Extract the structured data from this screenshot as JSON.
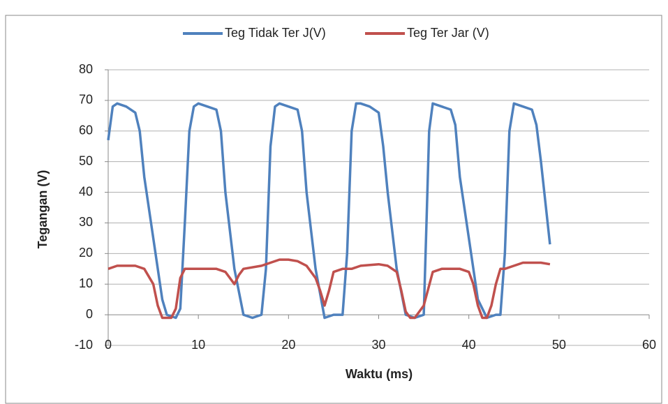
{
  "chart_data": {
    "type": "line",
    "xlabel": "Waktu (ms)",
    "ylabel": "Tegangan (V)",
    "xlim": [
      0,
      60
    ],
    "xticks": [
      0,
      10,
      20,
      30,
      40,
      50,
      60
    ],
    "ylim": [
      -10,
      80
    ],
    "yticks": [
      -10,
      0,
      10,
      20,
      30,
      40,
      50,
      60,
      70,
      80
    ],
    "grid": true,
    "legend": "top",
    "series": [
      {
        "name": "Teg Tidak Ter J(V)",
        "color": "#4f81bd",
        "x": [
          0,
          0.5,
          1,
          2,
          3,
          3.5,
          4,
          5,
          6,
          6.5,
          7.5,
          8,
          8.5,
          9,
          9.5,
          10,
          11,
          12,
          12.5,
          13,
          14,
          15,
          16,
          17,
          17.5,
          18,
          18.5,
          19,
          20,
          21,
          21.5,
          22,
          23,
          24,
          25,
          26,
          26.5,
          27,
          27.5,
          28,
          29,
          30,
          30.5,
          31,
          32,
          33,
          34,
          35,
          35.3,
          35.6,
          36,
          37,
          38,
          38.5,
          39,
          40,
          41,
          42,
          43,
          43.5,
          44,
          44.5,
          45,
          46,
          47,
          47.5,
          48,
          49
        ],
        "values": [
          57,
          68,
          69,
          68,
          66,
          60,
          45,
          25,
          5,
          0,
          -1,
          2,
          30,
          60,
          68,
          69,
          68,
          67,
          60,
          40,
          15,
          0,
          -1,
          0,
          15,
          55,
          68,
          69,
          68,
          67,
          60,
          40,
          15,
          -1,
          0,
          0,
          20,
          60,
          69,
          69,
          68,
          66,
          55,
          40,
          15,
          0,
          -1,
          0,
          30,
          60,
          69,
          68,
          67,
          62,
          45,
          25,
          5,
          -1,
          0,
          0,
          20,
          60,
          69,
          68,
          67,
          62,
          50,
          23
        ]
      },
      {
        "name": "Teg Ter Jar (V)",
        "color": "#c0504d",
        "x": [
          0,
          1,
          3,
          4,
          5,
          5.5,
          6,
          7,
          7.5,
          8,
          8.5,
          10,
          12,
          13,
          13.5,
          14,
          14.5,
          15,
          17,
          18,
          19,
          20,
          21,
          22,
          23,
          23.5,
          24,
          24.5,
          25,
          26,
          27,
          28,
          30,
          31,
          32,
          32.5,
          33,
          33.5,
          34,
          35,
          36,
          37,
          38,
          39,
          40,
          40.5,
          41,
          41.5,
          42,
          42.5,
          43,
          43.5,
          44,
          45,
          46,
          47,
          48,
          49
        ],
        "values": [
          15,
          16,
          16,
          15,
          10,
          3,
          -1,
          -1,
          2,
          12,
          15,
          15,
          15,
          14,
          12,
          10,
          13,
          15,
          16,
          17,
          18,
          18,
          17.5,
          16,
          12,
          8,
          3,
          8,
          14,
          15,
          15,
          16,
          16.5,
          16,
          14,
          8,
          1,
          -1,
          -1,
          3,
          14,
          15,
          15,
          15,
          14,
          10,
          3,
          -1,
          -1,
          3,
          10,
          15,
          15,
          16,
          17,
          17,
          17,
          16.5
        ]
      }
    ]
  }
}
